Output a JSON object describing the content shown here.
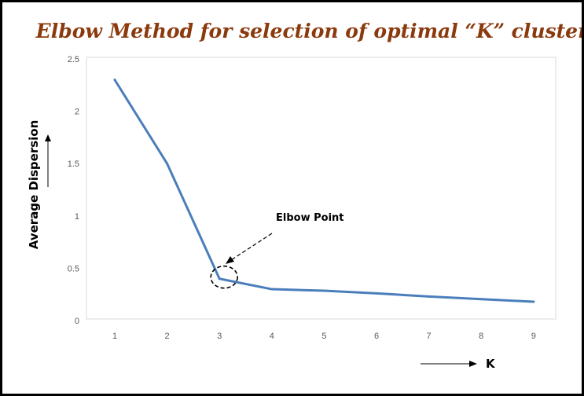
{
  "chart_data": {
    "type": "line",
    "title": "Elbow Method for selection of optimal “K” clusters",
    "title_color": "#8B3A0E",
    "xlabel": "K",
    "ylabel": "Average Dispersion",
    "x": [
      1,
      2,
      3,
      4,
      5,
      6,
      7,
      8,
      9
    ],
    "series": [
      {
        "values": [
          2.3,
          1.5,
          0.4,
          0.3,
          0.285,
          0.26,
          0.23,
          0.205,
          0.18
        ],
        "color": "#4A7EBB"
      }
    ],
    "ylim": [
      0,
      2.5
    ],
    "yticks": [
      "0",
      "0.5",
      "1",
      "1.5",
      "2",
      "2.5"
    ],
    "xticks": [
      "1",
      "2",
      "3",
      "4",
      "5",
      "6",
      "7",
      "8",
      "9"
    ],
    "grid": false,
    "annotation": {
      "text": "Elbow Point",
      "x": 3,
      "y": 0.4
    }
  }
}
